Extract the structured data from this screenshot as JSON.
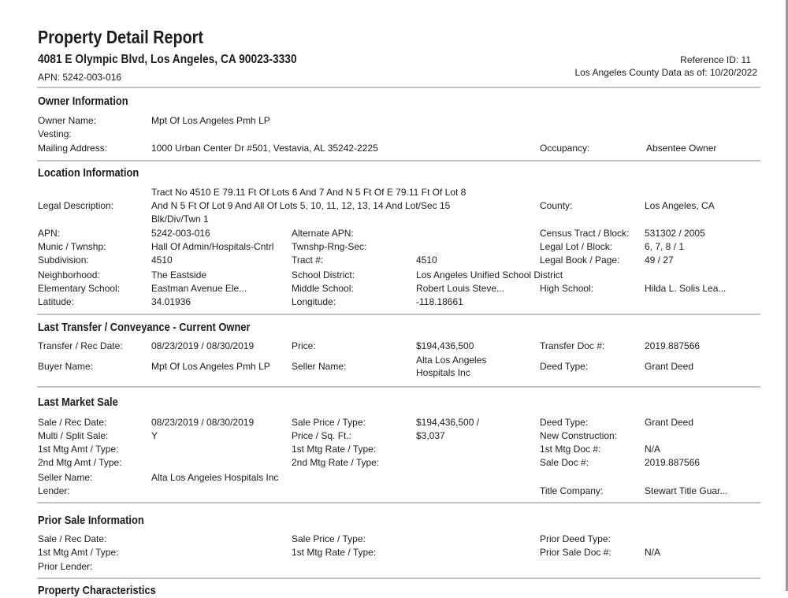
{
  "header": {
    "title": "Property Detail Report",
    "address": "4081 E Olympic Blvd, Los Angeles, CA 90023-3330",
    "apn": "APN: 5242-003-016",
    "reference_id": "Reference ID: 11",
    "data_as_of": "Los Angeles County Data as of: 10/20/2022"
  },
  "owner": {
    "heading": "Owner Information",
    "owner_name_label": "Owner Name:",
    "owner_name": "Mpt Of Los Angeles Pmh LP",
    "vesting_label": "Vesting:",
    "mailing_label": "Mailing Address:",
    "mailing": "1000 Urban Center Dr #501, Vestavia, AL 35242-2225",
    "occupancy_label": "Occupancy:",
    "occupancy": "Absentee Owner"
  },
  "location": {
    "heading": "Location Information",
    "legal_desc_label": "Legal Description:",
    "legal_desc_line1": "Tract No 4510 E 79.11 Ft Of Lots 6 And 7 And N 5 Ft Of E 79.11 Ft Of Lot 8",
    "legal_desc_line2": "And N 5 Ft Of Lot 9 And All Of Lots 5, 10, 11, 12, 13, 14 And Lot/Sec 15",
    "legal_desc_line3": "Blk/Div/Twn 1",
    "county_label": "County:",
    "county": "Los Angeles, CA",
    "apn_label": "APN:",
    "apn": "5242-003-016",
    "alt_apn_label": "Alternate APN:",
    "census_label": "Census Tract / Block:",
    "census": "531302 / 2005",
    "munic_label": "Munic / Twnshp:",
    "munic": "Hall Of Admin/Hospitals-Cntrl",
    "twnshp_label": "Twnshp-Rng-Sec:",
    "legal_lot_label": "Legal Lot / Block:",
    "legal_lot": "6, 7, 8 / 1",
    "subdivision_label": "Subdivision:",
    "subdivision": "4510",
    "tract_label": "Tract #:",
    "tract": "4510",
    "legal_book_label": "Legal Book / Page:",
    "legal_book": "49 / 27",
    "neighborhood_label": "Neighborhood:",
    "neighborhood": "The Eastside",
    "school_district_label": "School District:",
    "school_district": "Los Angeles Unified School District",
    "elementary_label": "Elementary School:",
    "elementary": "Eastman Avenue Ele...",
    "middle_label": "Middle School:",
    "middle": "Robert Louis Steve...",
    "high_label": "High School:",
    "high": "Hilda L. Solis Lea...",
    "latitude_label": "Latitude:",
    "latitude": "34.01936",
    "longitude_label": "Longitude:",
    "longitude": "-118.18661"
  },
  "transfer": {
    "heading": "Last Transfer / Conveyance - Current Owner",
    "rec_date_label": "Transfer / Rec Date:",
    "rec_date": "08/23/2019 / 08/30/2019",
    "price_label": "Price:",
    "price": "$194,436,500",
    "doc_label": "Transfer Doc #:",
    "doc": "2019.887566",
    "buyer_label": "Buyer Name:",
    "buyer": "Mpt Of Los Angeles Pmh LP",
    "seller_label": "Seller Name:",
    "seller_line1": "Alta Los Angeles",
    "seller_line2": "Hospitals Inc",
    "deed_type_label": "Deed Type:",
    "deed_type": "Grant Deed"
  },
  "market_sale": {
    "heading": "Last Market Sale",
    "rec_date_label": "Sale / Rec Date:",
    "rec_date": "08/23/2019 / 08/30/2019",
    "sale_price_label": "Sale Price / Type:",
    "sale_price": "$194,436,500 /",
    "deed_type_label": "Deed Type:",
    "deed_type": "Grant Deed",
    "multi_label": "Multi / Split Sale:",
    "multi": "Y",
    "price_sqft_label": "Price / Sq. Ft.:",
    "price_sqft": "$3,037",
    "new_construction_label": "New Construction:",
    "mtg1_amt_label": "1st Mtg Amt / Type:",
    "mtg1_rate_label": "1st Mtg Rate / Type:",
    "mtg1_doc_label": "1st Mtg Doc #:",
    "mtg1_doc": "N/A",
    "mtg2_amt_label": "2nd Mtg Amt / Type:",
    "mtg2_rate_label": "2nd Mtg Rate / Type:",
    "sale_doc_label": "Sale Doc #:",
    "sale_doc": "2019.887566",
    "seller_label": "Seller Name:",
    "seller": "Alta Los Angeles Hospitals Inc",
    "lender_label": "Lender:",
    "title_company_label": "Title Company:",
    "title_company": "Stewart Title Guar..."
  },
  "prior_sale": {
    "heading": "Prior Sale Information",
    "rec_date_label": "Sale / Rec Date:",
    "sale_price_label": "Sale Price / Type:",
    "deed_type_label": "Prior Deed Type:",
    "mtg1_amt_label": "1st Mtg Amt / Type:",
    "mtg1_rate_label": "1st Mtg Rate / Type:",
    "prior_doc_label": "Prior Sale Doc #:",
    "prior_doc": "N/A",
    "lender_label": "Prior Lender:"
  },
  "next_section": {
    "heading": "Property Characteristics"
  }
}
